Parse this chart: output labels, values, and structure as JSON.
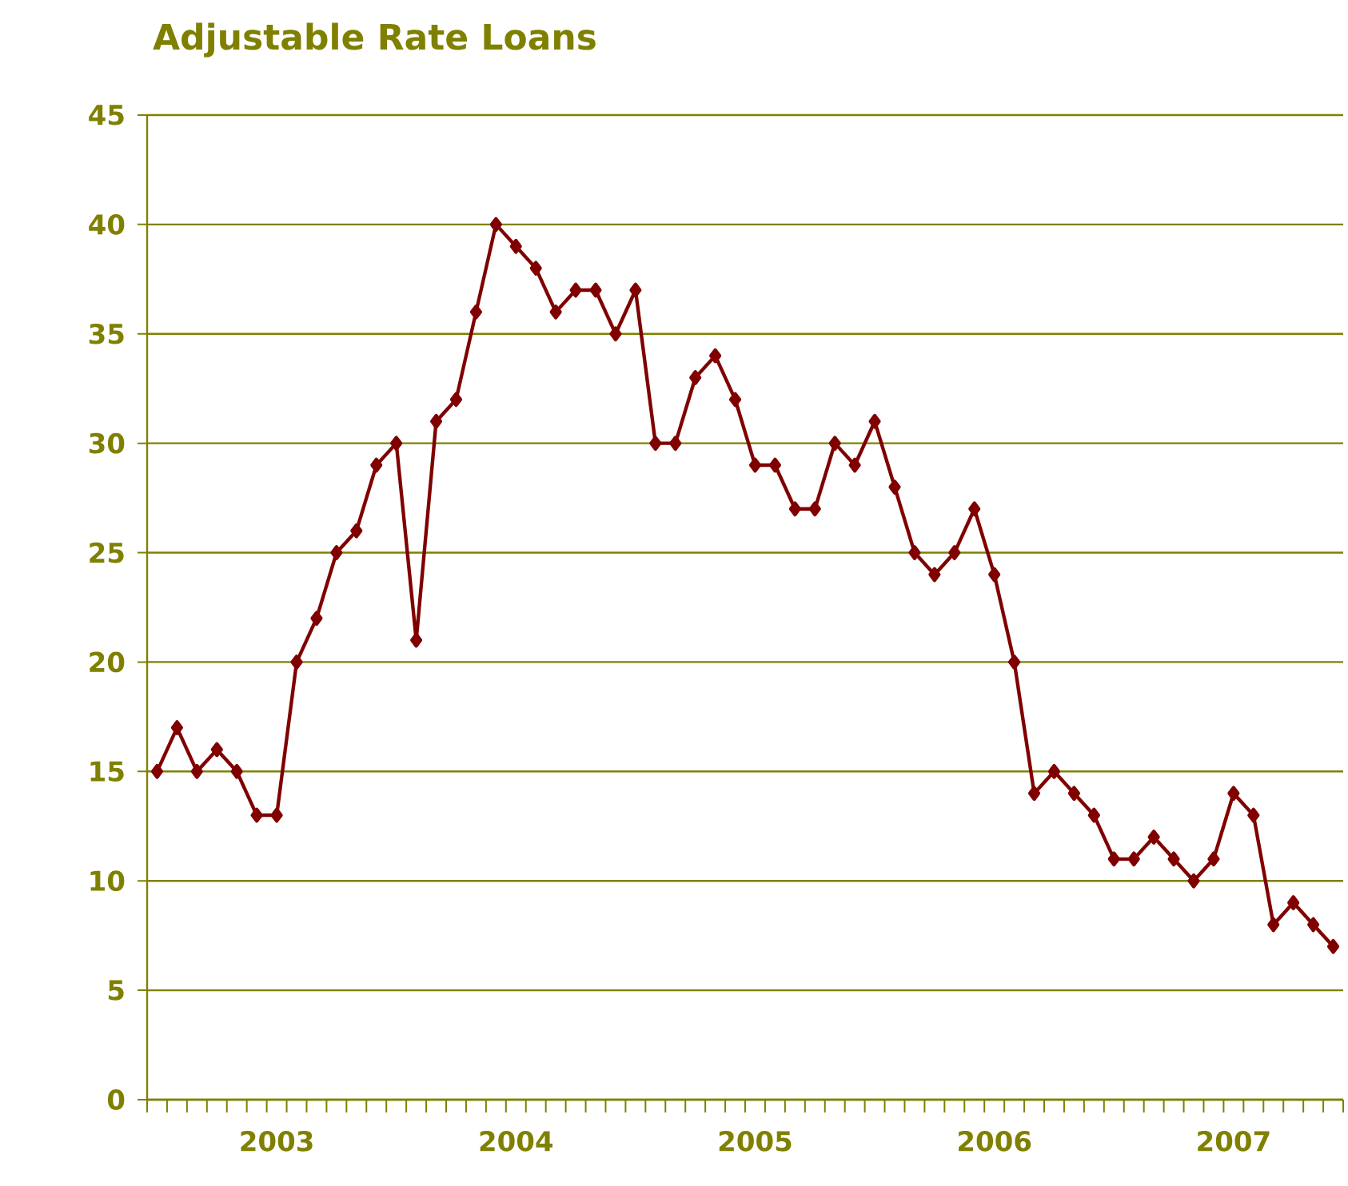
{
  "chart_data": {
    "type": "line",
    "title": "Adjustable Rate Loans",
    "categories": [
      null,
      null,
      null,
      null,
      null,
      null,
      "2003",
      null,
      null,
      null,
      null,
      null,
      null,
      null,
      null,
      null,
      null,
      null,
      "2004",
      null,
      null,
      null,
      null,
      null,
      null,
      null,
      null,
      null,
      null,
      null,
      "2005",
      null,
      null,
      null,
      null,
      null,
      null,
      null,
      null,
      null,
      null,
      null,
      "2006",
      null,
      null,
      null,
      null,
      null,
      null,
      null,
      null,
      null,
      null,
      null,
      "2007",
      null,
      null,
      null,
      null,
      null
    ],
    "series": [
      {
        "color": "#800000",
        "values": [
          15,
          17,
          15,
          16,
          15,
          13,
          13,
          20,
          22,
          25,
          26,
          29,
          30,
          21,
          31,
          32,
          36,
          40,
          39,
          38,
          36,
          37,
          37,
          35,
          37,
          30,
          30,
          33,
          34,
          32,
          29,
          29,
          27,
          27,
          30,
          29,
          31,
          28,
          25,
          24,
          25,
          27,
          24,
          20,
          14,
          15,
          14,
          13,
          11,
          11,
          12,
          11,
          10,
          11,
          14,
          13,
          8,
          9,
          8,
          7
        ]
      }
    ],
    "ylim": [
      0,
      45
    ],
    "yticks": [
      0,
      5,
      10,
      15,
      20,
      25,
      30,
      35,
      40,
      45
    ],
    "grid": "y",
    "marker": "diamond",
    "line_style": "solid"
  }
}
